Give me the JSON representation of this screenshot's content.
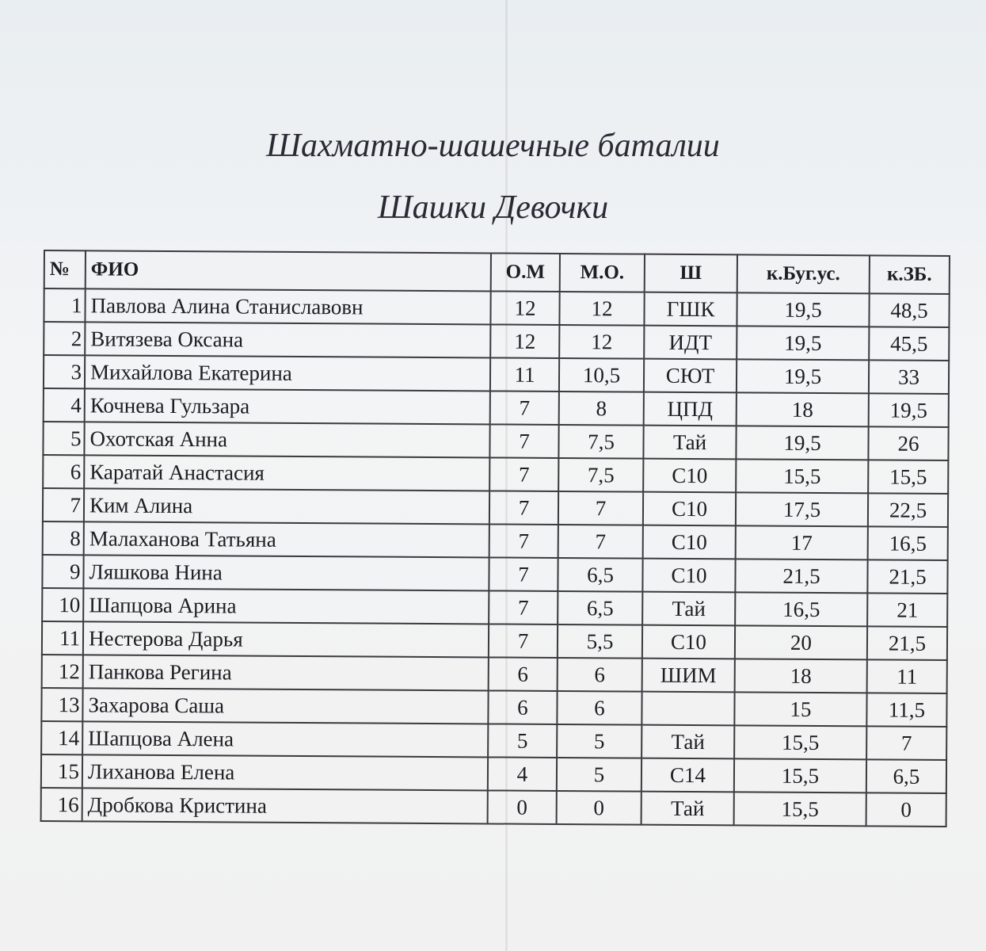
{
  "title": "Шахматно-шашечные баталии",
  "subtitle": "Шашки Девочки",
  "table": {
    "headers": [
      "№",
      "ФИО",
      "О.М",
      "М.О.",
      "Ш",
      "к.Буг.ус.",
      "к.ЗБ."
    ],
    "rows": [
      [
        "1",
        "Павлова Алина Станиславовн",
        "12",
        "12",
        "ГШК",
        "19,5",
        "48,5"
      ],
      [
        "2",
        "Витязева Оксана",
        "12",
        "12",
        "ИДТ",
        "19,5",
        "45,5"
      ],
      [
        "3",
        "Михайлова Екатерина",
        "11",
        "10,5",
        "СЮТ",
        "19,5",
        "33"
      ],
      [
        "4",
        "Кочнева Гульзара",
        "7",
        "8",
        "ЦПД",
        "18",
        "19,5"
      ],
      [
        "5",
        "Охотская Анна",
        "7",
        "7,5",
        "Тай",
        "19,5",
        "26"
      ],
      [
        "6",
        "Каратай Анастасия",
        "7",
        "7,5",
        "С10",
        "15,5",
        "15,5"
      ],
      [
        "7",
        "Ким Алина",
        "7",
        "7",
        "С10",
        "17,5",
        "22,5"
      ],
      [
        "8",
        "Малаханова Татьяна",
        "7",
        "7",
        "С10",
        "17",
        "16,5"
      ],
      [
        "9",
        "Ляшкова Нина",
        "7",
        "6,5",
        "С10",
        "21,5",
        "21,5"
      ],
      [
        "10",
        "Шапцова Арина",
        "7",
        "6,5",
        "Тай",
        "16,5",
        "21"
      ],
      [
        "11",
        "Нестерова Дарья",
        "7",
        "5,5",
        "С10",
        "20",
        "21,5"
      ],
      [
        "12",
        "Панкова Регина",
        "6",
        "6",
        "ШИМ",
        "18",
        "11"
      ],
      [
        "13",
        "Захарова Саша",
        "6",
        "6",
        "",
        "15",
        "11,5"
      ],
      [
        "14",
        "Шапцова Алена",
        "5",
        "5",
        "Тай",
        "15,5",
        "7"
      ],
      [
        "15",
        "Лиханова Елена",
        "4",
        "5",
        "С14",
        "15,5",
        "6,5"
      ],
      [
        "16",
        "Дробкова Кристина",
        "0",
        "0",
        "Тай",
        "15,5",
        "0"
      ]
    ]
  }
}
